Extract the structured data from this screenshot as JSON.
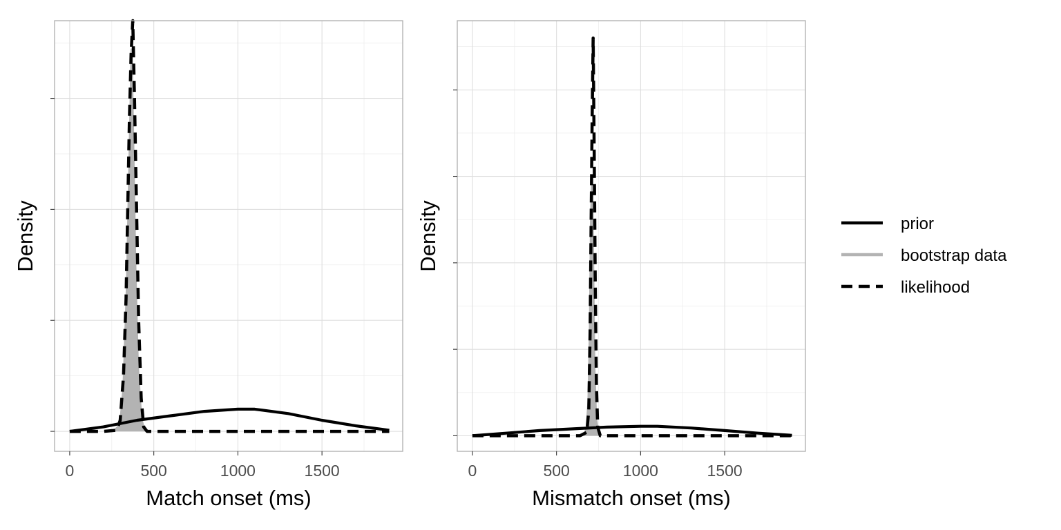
{
  "chart_data": [
    {
      "type": "line",
      "panel": "left",
      "title": "",
      "xlabel": "Match onset (ms)",
      "ylabel": "Density",
      "xlim": [
        -90,
        1980
      ],
      "ylim": [
        -0.09,
        1.85
      ],
      "x_ticks": [
        0,
        500,
        1000,
        1500
      ],
      "x_tick_labels": [
        "0",
        "500",
        "1000",
        "1500"
      ],
      "y_major_ticks": [
        0,
        0.5,
        1.0,
        1.5
      ],
      "y_tick_labels": [
        "",
        "",
        "",
        ""
      ],
      "grid": true,
      "series": [
        {
          "name": "prior",
          "style": "solid",
          "color": "#000000",
          "points": [
            [
              0,
              0
            ],
            [
              200,
              0.02
            ],
            [
              400,
              0.05
            ],
            [
              600,
              0.07
            ],
            [
              800,
              0.09
            ],
            [
              1000,
              0.1
            ],
            [
              1100,
              0.1
            ],
            [
              1300,
              0.08
            ],
            [
              1500,
              0.05
            ],
            [
              1700,
              0.025
            ],
            [
              1900,
              0.005
            ]
          ]
        },
        {
          "name": "bootstrap data",
          "style": "area",
          "color": "#b3b3b3",
          "points": [
            [
              260,
              0
            ],
            [
              300,
              0.03
            ],
            [
              320,
              0.2
            ],
            [
              340,
              0.65
            ],
            [
              355,
              1.2
            ],
            [
              368,
              1.72
            ],
            [
              378,
              1.3
            ],
            [
              390,
              0.75
            ],
            [
              405,
              0.3
            ],
            [
              425,
              0.06
            ],
            [
              445,
              0
            ]
          ]
        },
        {
          "name": "likelihood",
          "style": "dashed",
          "color": "#000000",
          "points": [
            [
              0,
              0
            ],
            [
              200,
              0
            ],
            [
              280,
              0.005
            ],
            [
              300,
              0.05
            ],
            [
              320,
              0.25
            ],
            [
              335,
              0.6
            ],
            [
              345,
              1.0
            ],
            [
              355,
              1.4
            ],
            [
              365,
              1.7
            ],
            [
              375,
              1.85
            ],
            [
              385,
              1.5
            ],
            [
              395,
              1.1
            ],
            [
              410,
              0.5
            ],
            [
              425,
              0.15
            ],
            [
              440,
              0.02
            ],
            [
              460,
              0
            ],
            [
              1900,
              0
            ]
          ]
        }
      ]
    },
    {
      "type": "line",
      "panel": "right",
      "title": "",
      "xlabel": "Mismatch onset (ms)",
      "ylabel": "Density",
      "xlim": [
        -90,
        1980
      ],
      "ylim": [
        -0.018,
        0.48
      ],
      "x_ticks": [
        0,
        500,
        1000,
        1500
      ],
      "x_tick_labels": [
        "0",
        "500",
        "1000",
        "1500"
      ],
      "y_major_ticks": [
        0,
        0.1,
        0.2,
        0.3,
        0.4
      ],
      "y_tick_labels": [
        "",
        "",
        "",
        "",
        ""
      ],
      "grid": true,
      "series": [
        {
          "name": "prior",
          "style": "solid",
          "color": "#000000",
          "points": [
            [
              0,
              0
            ],
            [
              200,
              0.003
            ],
            [
              400,
              0.006
            ],
            [
              600,
              0.008
            ],
            [
              800,
              0.01
            ],
            [
              1000,
              0.011
            ],
            [
              1100,
              0.011
            ],
            [
              1300,
              0.009
            ],
            [
              1500,
              0.006
            ],
            [
              1700,
              0.003
            ],
            [
              1900,
              0.0005
            ]
          ]
        },
        {
          "name": "bootstrap data",
          "style": "area",
          "color": "#b3b3b3",
          "points": [
            [
              665,
              0
            ],
            [
              680,
              0.01
            ],
            [
              690,
              0.04
            ],
            [
              698,
              0.12
            ],
            [
              705,
              0.25
            ],
            [
              712,
              0.3
            ],
            [
              718,
              0.2
            ],
            [
              725,
              0.08
            ],
            [
              735,
              0.02
            ],
            [
              750,
              0
            ]
          ]
        },
        {
          "name": "likelihood",
          "style": "dashed",
          "color": "#000000",
          "points": [
            [
              0,
              0
            ],
            [
              640,
              0
            ],
            [
              680,
              0.004
            ],
            [
              692,
              0.03
            ],
            [
              700,
              0.12
            ],
            [
              706,
              0.25
            ],
            [
              712,
              0.37
            ],
            [
              718,
              0.46
            ],
            [
              724,
              0.33
            ],
            [
              730,
              0.18
            ],
            [
              737,
              0.06
            ],
            [
              745,
              0.01
            ],
            [
              760,
              0
            ],
            [
              1900,
              0
            ]
          ]
        }
      ]
    }
  ],
  "legend": {
    "position": "right",
    "items": [
      {
        "label": "prior",
        "style": "solid",
        "color": "#000000"
      },
      {
        "label": "bootstrap data",
        "style": "solid",
        "color": "#b3b3b3"
      },
      {
        "label": "likelihood",
        "style": "dashed",
        "color": "#000000"
      }
    ]
  }
}
